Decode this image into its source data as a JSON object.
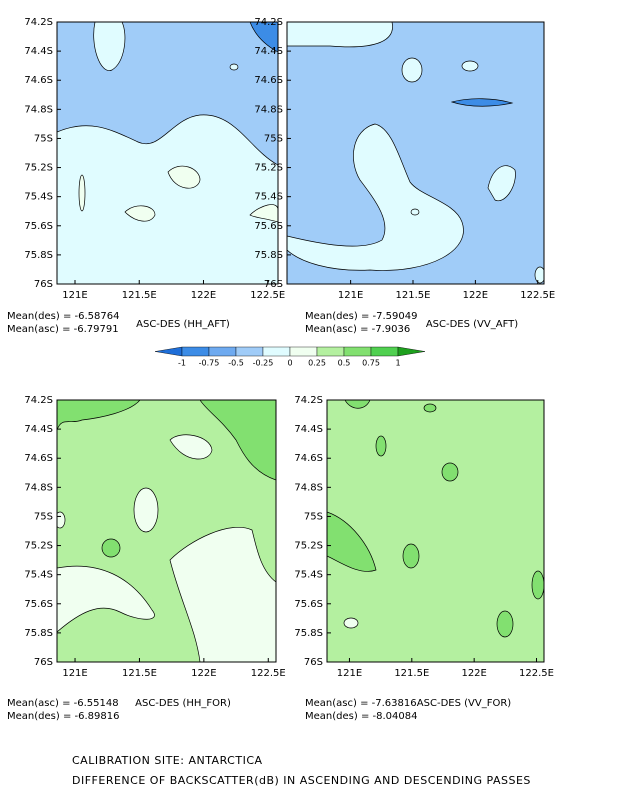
{
  "chart_data": [
    {
      "type": "contour",
      "title": "ASC-DES (HH_AFT)",
      "annotations": [
        "Mean(des) = -6.58764",
        "Mean(asc) = -6.79791"
      ],
      "xlim": [
        120.86,
        122.58
      ],
      "ylim": [
        -76,
        -74.2
      ],
      "xticks": [
        {
          "value": 121,
          "label": "121E"
        },
        {
          "value": 121.5,
          "label": "121.5E"
        },
        {
          "value": 122,
          "label": "122E"
        },
        {
          "value": 122.5,
          "label": "122.5E"
        }
      ],
      "yticks": [
        {
          "value": -74.2,
          "label": "74.2S"
        },
        {
          "value": -74.4,
          "label": "74.4S"
        },
        {
          "value": -74.6,
          "label": "74.6S"
        },
        {
          "value": -74.8,
          "label": "74.8S"
        },
        {
          "value": -75,
          "label": "75S"
        },
        {
          "value": -75.2,
          "label": "75.2S"
        },
        {
          "value": -75.4,
          "label": "75.4S"
        },
        {
          "value": -75.6,
          "label": "75.6S"
        },
        {
          "value": -75.8,
          "label": "75.8S"
        },
        {
          "value": -76,
          "label": "76S"
        }
      ]
    },
    {
      "type": "contour",
      "title": "ASC-DES (VV_AFT)",
      "annotations": [
        "Mean(des) = -7.59049",
        "Mean(asc) = -7.9036"
      ],
      "xlim": [
        120.49,
        122.55
      ],
      "ylim": [
        -76,
        -74.2
      ],
      "xticks": [
        {
          "value": 121,
          "label": "121E"
        },
        {
          "value": 121.5,
          "label": "121.5E"
        },
        {
          "value": 122,
          "label": "122E"
        },
        {
          "value": 122.5,
          "label": "122.5E"
        }
      ],
      "yticks": [
        {
          "value": -74.2,
          "label": "74.2S"
        },
        {
          "value": -74.4,
          "label": "74.4S"
        },
        {
          "value": -74.6,
          "label": "74.6S"
        },
        {
          "value": -74.8,
          "label": "74.8S"
        },
        {
          "value": -75,
          "label": "75S"
        },
        {
          "value": -75.2,
          "label": "75.2S"
        },
        {
          "value": -75.4,
          "label": "75.4S"
        },
        {
          "value": -75.6,
          "label": "75.6S"
        },
        {
          "value": -75.8,
          "label": "75.8S"
        },
        {
          "value": -76,
          "label": "76S"
        }
      ]
    },
    {
      "type": "contour",
      "title": "ASC-DES (HH_FOR)",
      "annotations": [
        "Mean(asc) = -6.55148",
        "Mean(des) = -6.89816"
      ],
      "xlim": [
        120.86,
        122.56
      ],
      "ylim": [
        -76,
        -74.2
      ],
      "xticks": [
        {
          "value": 121,
          "label": "121E"
        },
        {
          "value": 121.5,
          "label": "121.5E"
        },
        {
          "value": 122,
          "label": "122E"
        },
        {
          "value": 122.5,
          "label": "122.5E"
        }
      ],
      "yticks": [
        {
          "value": -74.2,
          "label": "74.2S"
        },
        {
          "value": -74.4,
          "label": "74.4S"
        },
        {
          "value": -74.6,
          "label": "74.6S"
        },
        {
          "value": -74.8,
          "label": "74.8S"
        },
        {
          "value": -75,
          "label": "75S"
        },
        {
          "value": -75.2,
          "label": "75.2S"
        },
        {
          "value": -75.4,
          "label": "75.4S"
        },
        {
          "value": -75.6,
          "label": "75.6S"
        },
        {
          "value": -75.8,
          "label": "75.8S"
        },
        {
          "value": -76,
          "label": "76S"
        }
      ]
    },
    {
      "type": "contour",
      "title": "ASC-DES (VV_FOR)",
      "annotations": [
        "Mean(asc) = -7.63816",
        "Mean(des) = -8.04084"
      ],
      "xlim": [
        120.82,
        122.56
      ],
      "ylim": [
        -76,
        -74.2
      ],
      "xticks": [
        {
          "value": 121,
          "label": "121E"
        },
        {
          "value": 121.5,
          "label": "121.5E"
        },
        {
          "value": 122,
          "label": "122E"
        },
        {
          "value": 122.5,
          "label": "122.5E"
        }
      ],
      "yticks": [
        {
          "value": -74.2,
          "label": "74.2S"
        },
        {
          "value": -74.4,
          "label": "74.4S"
        },
        {
          "value": -74.6,
          "label": "74.6S"
        },
        {
          "value": -74.8,
          "label": "74.8S"
        },
        {
          "value": -75,
          "label": "75S"
        },
        {
          "value": -75.2,
          "label": "75.2S"
        },
        {
          "value": -75.4,
          "label": "75.4S"
        },
        {
          "value": -75.6,
          "label": "75.6S"
        },
        {
          "value": -75.8,
          "label": "75.8S"
        },
        {
          "value": -76,
          "label": "76S"
        }
      ]
    }
  ],
  "colorbar": {
    "levels": [
      -1,
      -0.75,
      -0.5,
      -0.25,
      0,
      0.25,
      0.5,
      0.75,
      1
    ],
    "colors": [
      "#1e6ed8",
      "#3c8ce6",
      "#6eaaf0",
      "#a0ccf8",
      "#e0fcff",
      "#f0fff0",
      "#b4f0a0",
      "#82e070",
      "#50d050",
      "#1ea01e"
    ]
  },
  "caption": [
    "CALIBRATION SITE: ANTARCTICA",
    "DIFFERENCE OF BACKSCATTER(dB) IN ASCENDING AND DESCENDING PASSES"
  ]
}
